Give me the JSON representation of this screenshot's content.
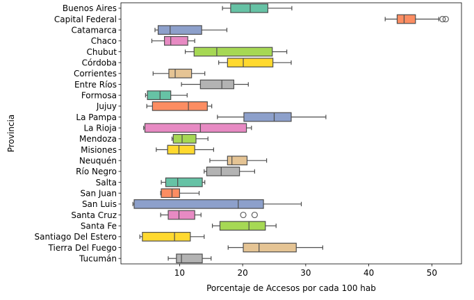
{
  "chart_data": {
    "type": "boxplot",
    "orientation": "horizontal",
    "xlabel": "Porcentaje de Accesos por cada 100 hab",
    "ylabel": "Provincia",
    "xlim": [
      0.7,
      54.7
    ],
    "xticks": [
      10,
      20,
      30,
      40,
      50
    ],
    "grid": false,
    "palette": "Set2",
    "colors": [
      "#66c2a5",
      "#fc8d62",
      "#8da0cb",
      "#e78ac3",
      "#a6d854",
      "#ffd92f",
      "#e5c494",
      "#b3b3b3"
    ],
    "series": [
      {
        "name": "Buenos Aires",
        "whisker_low": 16.8,
        "q1": 18.1,
        "median": 21.2,
        "q3": 24.0,
        "whisker_high": 27.8,
        "outliers": []
      },
      {
        "name": "Capital Federal",
        "whisker_low": 42.6,
        "q1": 44.5,
        "median": 45.6,
        "q3": 47.4,
        "whisker_high": 51.1,
        "outliers": [
          51.7,
          52.2
        ]
      },
      {
        "name": "Catamarca",
        "whisker_low": 6.1,
        "q1": 6.6,
        "median": 8.5,
        "q3": 13.5,
        "whisker_high": 17.5,
        "outliers": []
      },
      {
        "name": "Chaco",
        "whisker_low": 5.6,
        "q1": 7.6,
        "median": 8.6,
        "q3": 11.3,
        "whisker_high": 12.4,
        "outliers": []
      },
      {
        "name": "Chubut",
        "whisker_low": 10.9,
        "q1": 12.3,
        "median": 15.9,
        "q3": 24.7,
        "whisker_high": 27.0,
        "outliers": []
      },
      {
        "name": "Córdoba",
        "whisker_low": 16.2,
        "q1": 17.6,
        "median": 20.1,
        "q3": 24.8,
        "whisker_high": 27.7,
        "outliers": []
      },
      {
        "name": "Corrientes",
        "whisker_low": 5.8,
        "q1": 8.3,
        "median": 9.3,
        "q3": 11.9,
        "whisker_high": 14.0,
        "outliers": []
      },
      {
        "name": "Entre Ríos",
        "whisker_low": 10.3,
        "q1": 13.3,
        "median": 16.7,
        "q3": 18.6,
        "whisker_high": 20.9,
        "outliers": []
      },
      {
        "name": "Formosa",
        "whisker_low": 4.6,
        "q1": 4.9,
        "median": 6.9,
        "q3": 8.6,
        "whisker_high": 11.2,
        "outliers": []
      },
      {
        "name": "Jujuy",
        "whisker_low": 4.8,
        "q1": 5.7,
        "median": 11.4,
        "q3": 14.4,
        "whisker_high": 15.1,
        "outliers": []
      },
      {
        "name": "La Pampa",
        "whisker_low": 16.0,
        "q1": 20.2,
        "median": 25.0,
        "q3": 27.7,
        "whisker_high": 33.2,
        "outliers": []
      },
      {
        "name": "La Rioja",
        "whisker_low": 4.3,
        "q1": 4.5,
        "median": 13.3,
        "q3": 20.6,
        "whisker_high": 21.4,
        "outliers": []
      },
      {
        "name": "Mendoza",
        "whisker_low": 8.8,
        "q1": 9.0,
        "median": 10.4,
        "q3": 12.6,
        "whisker_high": 14.5,
        "outliers": []
      },
      {
        "name": "Misiones",
        "whisker_low": 6.3,
        "q1": 8.1,
        "median": 9.9,
        "q3": 12.4,
        "whisker_high": 15.4,
        "outliers": []
      },
      {
        "name": "Neuquén",
        "whisker_low": 14.8,
        "q1": 17.6,
        "median": 18.3,
        "q3": 20.7,
        "whisker_high": 23.8,
        "outliers": []
      },
      {
        "name": "Río Negro",
        "whisker_low": 13.9,
        "q1": 14.3,
        "median": 16.6,
        "q3": 19.5,
        "whisker_high": 21.9,
        "outliers": []
      },
      {
        "name": "Salta",
        "whisker_low": 7.1,
        "q1": 7.8,
        "median": 9.7,
        "q3": 13.6,
        "whisker_high": 14.0,
        "outliers": []
      },
      {
        "name": "San Juan",
        "whisker_low": 7.0,
        "q1": 7.1,
        "median": 8.8,
        "q3": 10.0,
        "whisker_high": 13.1,
        "outliers": []
      },
      {
        "name": "San Luis",
        "whisker_low": 2.6,
        "q1": 2.8,
        "median": 19.3,
        "q3": 23.3,
        "whisker_high": 29.3,
        "outliers": []
      },
      {
        "name": "Santa Cruz",
        "whisker_low": 7.0,
        "q1": 8.2,
        "median": 9.9,
        "q3": 12.4,
        "whisker_high": 13.4,
        "outliers": [
          20.1,
          21.9
        ]
      },
      {
        "name": "Santa Fe",
        "whisker_low": 15.2,
        "q1": 16.4,
        "median": 21.0,
        "q3": 23.6,
        "whisker_high": 25.3,
        "outliers": []
      },
      {
        "name": "Santiago Del Estero",
        "whisker_low": 3.7,
        "q1": 4.1,
        "median": 9.2,
        "q3": 11.7,
        "whisker_high": 13.9,
        "outliers": []
      },
      {
        "name": "Tierra Del Fuego",
        "whisker_low": 17.7,
        "q1": 20.1,
        "median": 22.6,
        "q3": 28.5,
        "whisker_high": 32.7,
        "outliers": []
      },
      {
        "name": "Tucumán",
        "whisker_low": 8.2,
        "q1": 9.5,
        "median": 10.3,
        "q3": 13.6,
        "whisker_high": 15.0,
        "outliers": []
      }
    ]
  }
}
